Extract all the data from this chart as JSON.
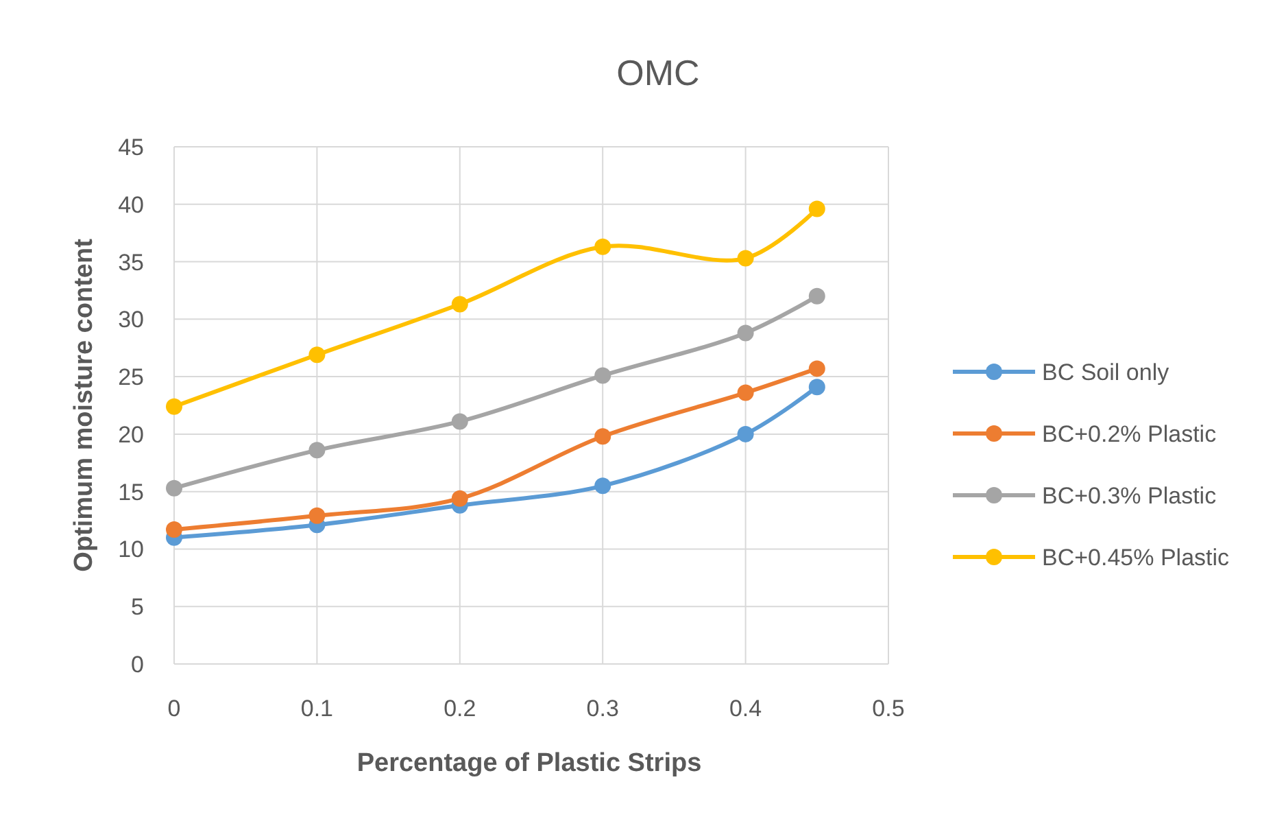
{
  "chart_data": {
    "type": "line",
    "title": "OMC",
    "xlabel": "Percentage of Plastic Strips",
    "ylabel": "Optimum moisture content",
    "x": [
      0,
      0.1,
      0.2,
      0.3,
      0.4,
      0.45
    ],
    "xlim": [
      0,
      0.5
    ],
    "xticks": [
      0,
      0.1,
      0.2,
      0.3,
      0.4,
      0.5
    ],
    "ylim": [
      0,
      45
    ],
    "yticks": [
      0,
      5,
      10,
      15,
      20,
      25,
      30,
      35,
      40,
      45
    ],
    "grid": true,
    "legend": "right",
    "marker": "circle",
    "line_style": "solid",
    "series": [
      {
        "name": "BC Soil only",
        "color": "#5b9bd5",
        "values": [
          11.0,
          12.1,
          13.8,
          15.5,
          20.0,
          24.1
        ]
      },
      {
        "name": "BC+0.2% Plastic",
        "color": "#ed7d31",
        "values": [
          11.7,
          12.9,
          14.4,
          19.8,
          23.6,
          25.7
        ]
      },
      {
        "name": "BC+0.3% Plastic",
        "color": "#a5a5a5",
        "values": [
          15.3,
          18.6,
          21.1,
          25.1,
          28.8,
          32.0
        ]
      },
      {
        "name": "BC+0.45% Plastic",
        "color": "#ffc000",
        "values": [
          22.4,
          26.9,
          31.3,
          36.3,
          35.3,
          39.6
        ]
      }
    ]
  }
}
